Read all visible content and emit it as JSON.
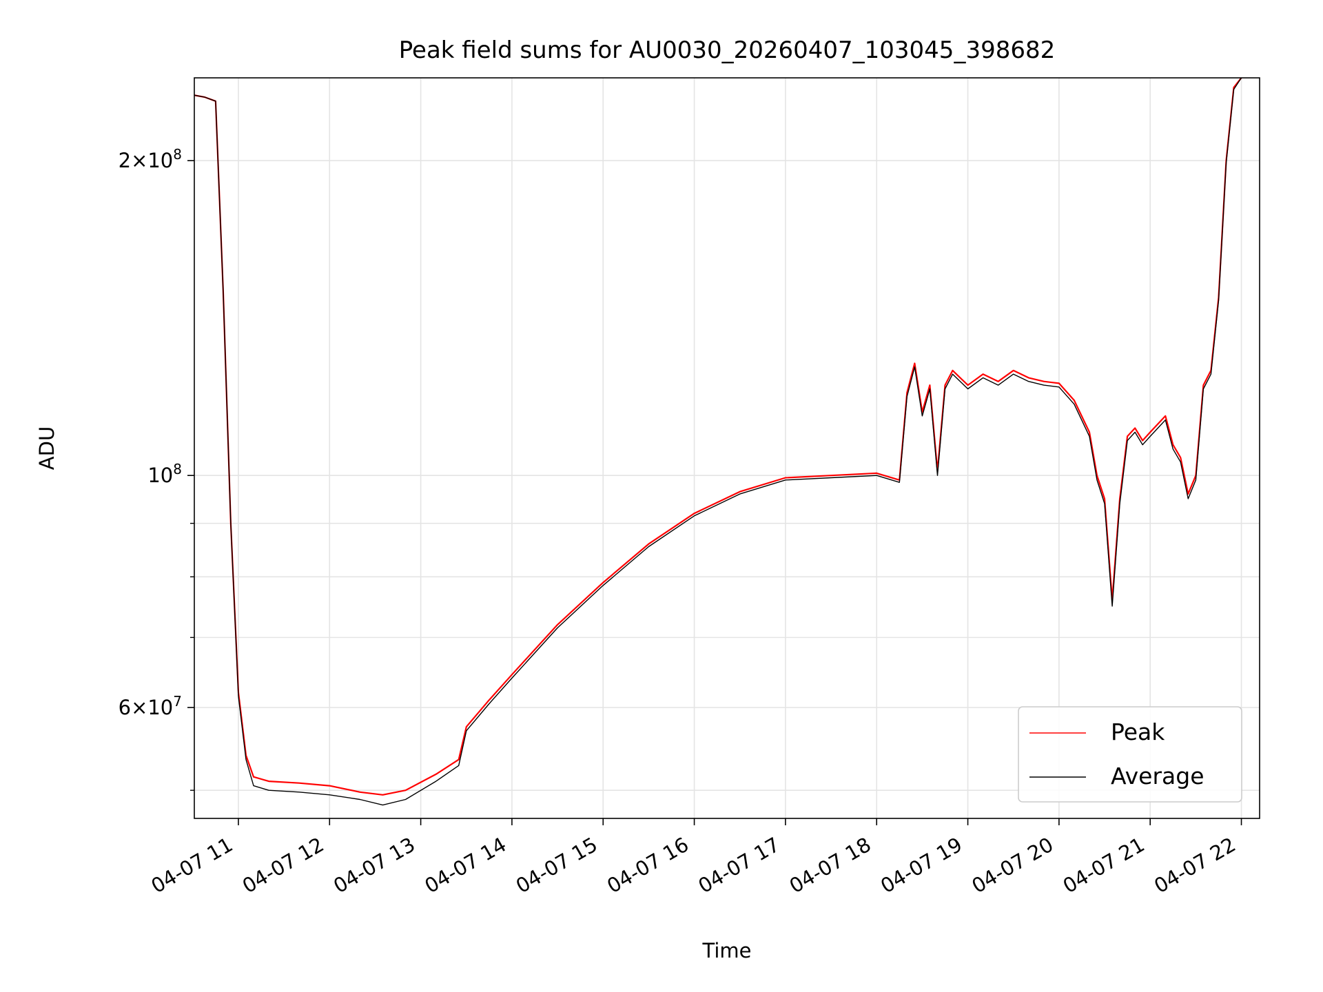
{
  "chart_data": {
    "type": "line",
    "title": "Peak field sums for AU0030_20260407_103045_398682",
    "xlabel": "Time",
    "ylabel": "ADU",
    "y_scale": "log",
    "ylim": [
      47000000,
      240000000
    ],
    "xlim": [
      "2026-04-07 10:31",
      "2026-04-07 22:12"
    ],
    "grid": true,
    "legend_position": "lower-right",
    "x_ticks": [
      {
        "t": "2026-04-07 11:00",
        "label": "04-07 11"
      },
      {
        "t": "2026-04-07 12:00",
        "label": "04-07 12"
      },
      {
        "t": "2026-04-07 13:00",
        "label": "04-07 13"
      },
      {
        "t": "2026-04-07 14:00",
        "label": "04-07 14"
      },
      {
        "t": "2026-04-07 15:00",
        "label": "04-07 15"
      },
      {
        "t": "2026-04-07 16:00",
        "label": "04-07 16"
      },
      {
        "t": "2026-04-07 17:00",
        "label": "04-07 17"
      },
      {
        "t": "2026-04-07 18:00",
        "label": "04-07 18"
      },
      {
        "t": "2026-04-07 19:00",
        "label": "04-07 19"
      },
      {
        "t": "2026-04-07 20:00",
        "label": "04-07 20"
      },
      {
        "t": "2026-04-07 21:00",
        "label": "04-07 21"
      },
      {
        "t": "2026-04-07 22:00",
        "label": "04-07 22"
      }
    ],
    "y_major_ticks": [
      {
        "value": 60000000,
        "mantissa": "6",
        "exponent": "7"
      },
      {
        "value": 100000000,
        "mantissa": "",
        "exponent": "8"
      },
      {
        "value": 200000000,
        "mantissa": "2",
        "exponent": "8"
      }
    ],
    "y_minor_ticks": [
      50000000,
      70000000,
      80000000,
      90000000
    ],
    "series": [
      {
        "name": "Peak",
        "color": "#ff0000",
        "x": [
          "2026-04-07 10:31",
          "2026-04-07 10:38",
          "2026-04-07 10:45",
          "2026-04-07 10:50",
          "2026-04-07 10:55",
          "2026-04-07 11:00",
          "2026-04-07 11:05",
          "2026-04-07 11:10",
          "2026-04-07 11:20",
          "2026-04-07 11:40",
          "2026-04-07 12:00",
          "2026-04-07 12:20",
          "2026-04-07 12:35",
          "2026-04-07 12:50",
          "2026-04-07 13:10",
          "2026-04-07 13:25",
          "2026-04-07 13:30",
          "2026-04-07 13:45",
          "2026-04-07 14:00",
          "2026-04-07 14:30",
          "2026-04-07 15:00",
          "2026-04-07 15:30",
          "2026-04-07 16:00",
          "2026-04-07 16:30",
          "2026-04-07 17:00",
          "2026-04-07 17:30",
          "2026-04-07 18:00",
          "2026-04-07 18:15",
          "2026-04-07 18:20",
          "2026-04-07 18:25",
          "2026-04-07 18:30",
          "2026-04-07 18:35",
          "2026-04-07 18:40",
          "2026-04-07 18:45",
          "2026-04-07 18:50",
          "2026-04-07 18:55",
          "2026-04-07 19:00",
          "2026-04-07 19:10",
          "2026-04-07 19:20",
          "2026-04-07 19:30",
          "2026-04-07 19:40",
          "2026-04-07 19:50",
          "2026-04-07 20:00",
          "2026-04-07 20:10",
          "2026-04-07 20:20",
          "2026-04-07 20:25",
          "2026-04-07 20:30",
          "2026-04-07 20:35",
          "2026-04-07 20:40",
          "2026-04-07 20:45",
          "2026-04-07 20:50",
          "2026-04-07 20:55",
          "2026-04-07 21:00",
          "2026-04-07 21:10",
          "2026-04-07 21:15",
          "2026-04-07 21:20",
          "2026-04-07 21:25",
          "2026-04-07 21:30",
          "2026-04-07 21:35",
          "2026-04-07 21:40",
          "2026-04-07 21:45",
          "2026-04-07 21:50",
          "2026-04-07 21:55",
          "2026-04-07 22:00"
        ],
        "y": [
          231000000,
          230000000,
          228000000,
          150000000,
          90000000,
          62000000,
          54000000,
          51500000,
          51000000,
          50800000,
          50500000,
          49800000,
          49500000,
          50000000,
          51800000,
          53500000,
          57500000,
          61000000,
          64500000,
          72000000,
          79000000,
          86000000,
          92000000,
          96500000,
          99500000,
          100000000,
          100500000,
          99000000,
          120000000,
          128000000,
          115000000,
          122000000,
          101000000,
          122000000,
          126000000,
          124000000,
          122000000,
          125000000,
          123000000,
          126000000,
          124000000,
          123000000,
          122500000,
          118000000,
          110000000,
          100000000,
          95000000,
          76000000,
          95000000,
          109000000,
          111000000,
          108000000,
          110000000,
          114000000,
          107000000,
          104000000,
          96000000,
          100000000,
          122000000,
          126000000,
          148000000,
          200000000,
          235000000,
          240000000
        ]
      },
      {
        "name": "Average",
        "color": "#000000",
        "x": [
          "2026-04-07 10:31",
          "2026-04-07 10:38",
          "2026-04-07 10:45",
          "2026-04-07 10:50",
          "2026-04-07 10:55",
          "2026-04-07 11:00",
          "2026-04-07 11:05",
          "2026-04-07 11:10",
          "2026-04-07 11:20",
          "2026-04-07 11:40",
          "2026-04-07 12:00",
          "2026-04-07 12:20",
          "2026-04-07 12:35",
          "2026-04-07 12:50",
          "2026-04-07 13:10",
          "2026-04-07 13:25",
          "2026-04-07 13:30",
          "2026-04-07 13:45",
          "2026-04-07 14:00",
          "2026-04-07 14:30",
          "2026-04-07 15:00",
          "2026-04-07 15:30",
          "2026-04-07 16:00",
          "2026-04-07 16:30",
          "2026-04-07 17:00",
          "2026-04-07 17:30",
          "2026-04-07 18:00",
          "2026-04-07 18:15",
          "2026-04-07 18:20",
          "2026-04-07 18:25",
          "2026-04-07 18:30",
          "2026-04-07 18:35",
          "2026-04-07 18:40",
          "2026-04-07 18:45",
          "2026-04-07 18:50",
          "2026-04-07 18:55",
          "2026-04-07 19:00",
          "2026-04-07 19:10",
          "2026-04-07 19:20",
          "2026-04-07 19:30",
          "2026-04-07 19:40",
          "2026-04-07 19:50",
          "2026-04-07 20:00",
          "2026-04-07 20:10",
          "2026-04-07 20:20",
          "2026-04-07 20:25",
          "2026-04-07 20:30",
          "2026-04-07 20:35",
          "2026-04-07 20:40",
          "2026-04-07 20:45",
          "2026-04-07 20:50",
          "2026-04-07 20:55",
          "2026-04-07 21:00",
          "2026-04-07 21:10",
          "2026-04-07 21:15",
          "2026-04-07 21:20",
          "2026-04-07 21:25",
          "2026-04-07 21:30",
          "2026-04-07 21:35",
          "2026-04-07 21:40",
          "2026-04-07 21:45",
          "2026-04-07 21:50",
          "2026-04-07 21:55",
          "2026-04-07 22:00"
        ],
        "y": [
          231000000,
          230000000,
          228000000,
          150000000,
          90000000,
          61500000,
          53500000,
          50500000,
          50000000,
          49800000,
          49500000,
          49000000,
          48400000,
          49000000,
          51000000,
          52800000,
          57000000,
          60500000,
          64000000,
          71500000,
          78500000,
          85500000,
          91500000,
          96000000,
          99000000,
          99500000,
          100000000,
          98500000,
          119000000,
          127000000,
          114000000,
          121000000,
          100000000,
          121000000,
          125000000,
          123000000,
          121000000,
          124000000,
          122000000,
          125000000,
          123000000,
          122000000,
          121500000,
          117000000,
          109000000,
          99000000,
          94000000,
          75000000,
          94000000,
          108000000,
          110000000,
          107000000,
          109000000,
          113000000,
          106000000,
          103000000,
          95000000,
          99000000,
          121000000,
          125000000,
          147000000,
          199000000,
          234000000,
          240000000
        ]
      }
    ]
  }
}
